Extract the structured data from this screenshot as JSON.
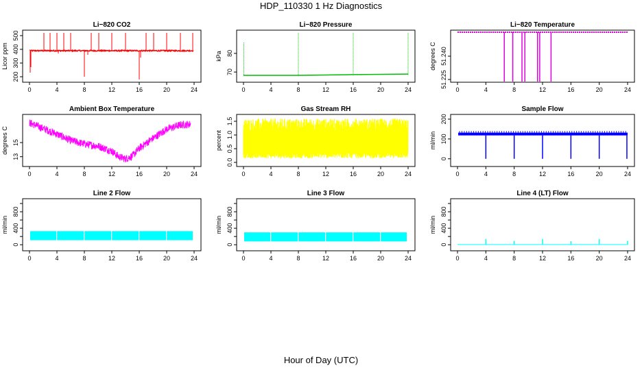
{
  "title": "HDP_110330  1 Hz Diagnostics",
  "xlabel": "Hour of Day (UTC)",
  "chart_data": [
    {
      "id": "co2",
      "type": "line",
      "title": "Li−820 CO2",
      "ylabel": "Licor ppm",
      "color": "#ff0000",
      "xlim": [
        0,
        24
      ],
      "xticks": [
        0,
        4,
        8,
        12,
        16,
        20,
        24
      ],
      "ylim": [
        180,
        520
      ],
      "yticks": [
        200,
        300,
        400,
        500
      ],
      "baseline": 390,
      "noise": 8,
      "spikes": [
        [
          2.1,
          520
        ],
        [
          3.0,
          520
        ],
        [
          4.0,
          520
        ],
        [
          5.0,
          520
        ],
        [
          6.0,
          520
        ],
        [
          8.0,
          200
        ],
        [
          9.0,
          520
        ],
        [
          10.1,
          520
        ],
        [
          12.0,
          520
        ],
        [
          14.0,
          520
        ],
        [
          16.0,
          180
        ],
        [
          17.0,
          520
        ],
        [
          18.1,
          520
        ],
        [
          20.0,
          520
        ],
        [
          22.0,
          520
        ],
        [
          23.8,
          520
        ]
      ],
      "dips": [
        [
          0.1,
          230
        ],
        [
          0.2,
          270
        ],
        [
          4.2,
          370
        ],
        [
          8.5,
          360
        ],
        [
          16.2,
          340
        ]
      ]
    },
    {
      "id": "pressure",
      "type": "line",
      "title": "Li−820 Pressure",
      "ylabel": "kPa",
      "color": "#00bb00",
      "xlim": [
        0,
        24
      ],
      "xticks": [
        0,
        4,
        8,
        12,
        16,
        20,
        24
      ],
      "ylim": [
        66,
        91
      ],
      "yticks": [
        70,
        80
      ],
      "segments": [
        [
          0,
          68.2
        ],
        [
          8,
          68.2
        ],
        [
          16,
          68.6
        ],
        [
          24,
          68.9
        ]
      ],
      "spikes": [
        [
          0.05,
          86
        ],
        [
          8.0,
          91
        ],
        [
          16.0,
          91
        ],
        [
          24.0,
          91
        ]
      ]
    },
    {
      "id": "licor_temp",
      "type": "line",
      "title": "Li−820 Temperature",
      "ylabel": "degrees C",
      "color": "#dd00dd",
      "xlim": [
        0,
        24
      ],
      "xticks": [
        0,
        4,
        8,
        12,
        16,
        20,
        24
      ],
      "ylim": [
        51.225,
        51.255
      ],
      "yticks": [
        51.225,
        51.24
      ],
      "yticklabels": [
        "51.225",
        "51.240"
      ],
      "baseline": 51.2545,
      "dips": [
        6.6,
        7.8,
        9.1,
        9.5,
        11.3,
        11.6,
        13.2
      ]
    },
    {
      "id": "box_temp",
      "type": "line",
      "title": "Ambient Box Temperature",
      "ylabel": "degrees C",
      "color": "#ff00ff",
      "xlim": [
        0,
        24
      ],
      "xticks": [
        0,
        4,
        8,
        12,
        16,
        20,
        24
      ],
      "ylim": [
        12.0,
        18.6
      ],
      "yticks": [
        13,
        15
      ],
      "x": [
        0,
        2,
        4,
        6,
        8,
        10,
        12,
        13,
        14,
        15,
        16,
        18,
        20,
        22,
        23.5
      ],
      "y": [
        17.8,
        17.0,
        16.2,
        15.3,
        14.8,
        14.5,
        13.8,
        13.0,
        12.7,
        13.1,
        14.2,
        15.6,
        16.9,
        17.5,
        17.6
      ],
      "noise": 0.55
    },
    {
      "id": "rh",
      "type": "line",
      "title": "Gas Stream RH",
      "ylabel": "percent",
      "color": "#ffff00",
      "xlim": [
        0,
        24
      ],
      "xticks": [
        0,
        4,
        8,
        12,
        16,
        20,
        24
      ],
      "ylim": [
        -0.05,
        1.65
      ],
      "yticks": [
        0.0,
        0.5,
        1.0,
        1.5
      ],
      "yticklabels": [
        "0.0",
        "0.5",
        "1.0",
        "1.5"
      ],
      "low": [
        0.15,
        0.4
      ],
      "high": [
        1.1,
        1.6
      ]
    },
    {
      "id": "sample_flow",
      "type": "line",
      "title": "Sample Flow",
      "ylabel": "ml/min",
      "color": "#0000ff",
      "xlim": [
        0,
        24
      ],
      "xticks": [
        0,
        4,
        8,
        12,
        16,
        20,
        24
      ],
      "ylim": [
        -25,
        210
      ],
      "yticks": [
        0,
        100,
        200
      ],
      "baseline": 118,
      "high": 132,
      "dips": [
        4.0,
        8.0,
        12.0,
        16.0,
        20.0,
        23.9
      ]
    },
    {
      "id": "line2",
      "type": "line",
      "title": "Line 2 Flow",
      "ylabel": "ml/min",
      "color": "#00ffff",
      "xlim": [
        0,
        24
      ],
      "xticks": [
        0,
        4,
        8,
        12,
        16,
        20,
        24
      ],
      "ylim": [
        -80,
        1050
      ],
      "yticks": [
        0,
        200,
        400,
        600,
        800,
        1000
      ],
      "yticklabels": [
        "0",
        "",
        "400",
        "",
        "800",
        ""
      ],
      "band": [
        110,
        330
      ],
      "gaps": [
        4.0,
        8.0,
        12.0,
        16.0,
        20.0
      ],
      "end": 23.9
    },
    {
      "id": "line3",
      "type": "line",
      "title": "Line 3 Flow",
      "ylabel": "ml/min",
      "color": "#00ffff",
      "xlim": [
        0,
        24
      ],
      "xticks": [
        0,
        4,
        8,
        12,
        16,
        20,
        24
      ],
      "ylim": [
        -80,
        1050
      ],
      "yticks": [
        0,
        200,
        400,
        600,
        800,
        1000
      ],
      "yticklabels": [
        "0",
        "",
        "400",
        "",
        "800",
        ""
      ],
      "band": [
        80,
        300
      ],
      "gaps": [
        4.0,
        8.0,
        12.0,
        16.0,
        20.0
      ],
      "end": 23.9
    },
    {
      "id": "line4",
      "type": "line",
      "title": "Line 4 (LT) Flow",
      "ylabel": "ml/min",
      "color": "#00ffff",
      "xlim": [
        0,
        24
      ],
      "xticks": [
        0,
        4,
        8,
        12,
        16,
        20,
        24
      ],
      "ylim": [
        -80,
        1050
      ],
      "yticks": [
        0,
        200,
        400,
        600,
        800,
        1000
      ],
      "yticklabels": [
        "0",
        "",
        "400",
        "",
        "800",
        ""
      ],
      "baseline": 5,
      "spikes": [
        [
          4.0,
          140
        ],
        [
          8.0,
          95
        ],
        [
          12.0,
          140
        ],
        [
          16.0,
          85
        ],
        [
          20.0,
          140
        ],
        [
          24.0,
          95
        ]
      ]
    }
  ]
}
